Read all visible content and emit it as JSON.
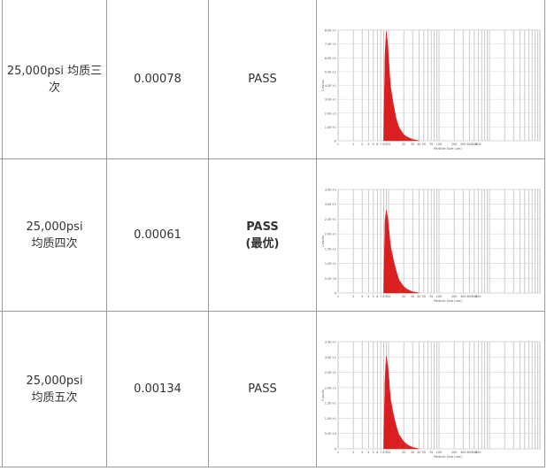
{
  "table": {
    "rows": [
      {
        "condition_line1": "25,000psi 均质三次",
        "condition_line2": "",
        "value": "0.00078",
        "result": "PASS",
        "result_note": "",
        "result_bold": false
      },
      {
        "condition_line1": "25,000psi",
        "condition_line2": "均质四次",
        "value": "0.00061",
        "result": "PASS",
        "result_note": "(最优)",
        "result_bold": true
      },
      {
        "condition_line1": "25,000psi",
        "condition_line2": "均质五次",
        "value": "0.00134",
        "result": "PASS",
        "result_note": "",
        "result_bold": false
      }
    ]
  },
  "chart_data": [
    {
      "type": "area",
      "title": "",
      "xlabel": "Particle Size (um)",
      "ylabel": "Counts",
      "x_scale": "log",
      "xlim": [
        0.1,
        1000
      ],
      "x_ticks": [
        "1",
        "2",
        "3",
        "4",
        "5",
        "6",
        "7",
        "8",
        "9",
        "10",
        "20",
        "30",
        "40",
        "50",
        "70",
        "100",
        "200",
        "300",
        "400",
        "500",
        "600"
      ],
      "ylim": [
        0,
        800
      ],
      "y_ticks": [
        "0",
        "1.0E+1",
        "2.0E+1",
        "3.0E+1",
        "4.0E+1",
        "5.0E+1",
        "6.0E+1",
        "7.0E+1",
        "8.0E+1"
      ],
      "x": [
        0.8,
        0.85,
        0.9,
        0.95,
        1.0,
        1.05,
        1.1,
        1.2,
        1.3,
        1.4,
        1.5,
        1.6,
        1.8,
        2.0,
        2.3,
        2.6,
        3.0,
        3.5,
        4.0
      ],
      "y": [
        0,
        620,
        790,
        720,
        600,
        480,
        390,
        300,
        230,
        170,
        130,
        100,
        70,
        45,
        30,
        20,
        10,
        5,
        0
      ],
      "color": "#e52929",
      "grid": true
    },
    {
      "type": "area",
      "title": "",
      "xlabel": "Particle Size (um)",
      "ylabel": "Counts",
      "x_scale": "log",
      "xlim": [
        0.1,
        1000
      ],
      "x_ticks": [
        "1",
        "2",
        "3",
        "4",
        "5",
        "6",
        "7",
        "8",
        "9",
        "10",
        "20",
        "30",
        "40",
        "50",
        "70",
        "100",
        "200",
        "300",
        "400",
        "500",
        "600"
      ],
      "ylim": [
        0,
        800
      ],
      "y_ticks": [
        "0",
        "5.0E+0",
        "1.0E+1",
        "1.5E+1",
        "2.0E+1",
        "2.5E+1",
        "3.0E+1",
        "3.5E+1"
      ],
      "x": [
        0.8,
        0.85,
        0.9,
        0.95,
        1.0,
        1.05,
        1.1,
        1.2,
        1.3,
        1.4,
        1.5,
        1.6,
        1.8,
        2.0,
        2.3,
        2.6,
        3.0,
        3.5,
        4.0
      ],
      "y": [
        0,
        560,
        640,
        600,
        520,
        430,
        360,
        290,
        230,
        180,
        140,
        105,
        75,
        50,
        32,
        20,
        10,
        5,
        0
      ],
      "color": "#e52929",
      "grid": true
    },
    {
      "type": "area",
      "title": "",
      "xlabel": "Particle Size (um)",
      "ylabel": "Counts",
      "x_scale": "log",
      "xlim": [
        0.1,
        1000
      ],
      "x_ticks": [
        "1",
        "2",
        "3",
        "4",
        "5",
        "6",
        "7",
        "8",
        "9",
        "10",
        "20",
        "30",
        "40",
        "50",
        "70",
        "100",
        "200",
        "300",
        "400",
        "500",
        "600"
      ],
      "ylim": [
        0,
        800
      ],
      "y_ticks": [
        "0",
        "5.0E+0",
        "1.0E+1",
        "1.5E+1",
        "2.0E+1",
        "2.5E+1",
        "3.0E+1",
        "3.5E+1"
      ],
      "x": [
        0.8,
        0.85,
        0.9,
        0.95,
        1.0,
        1.05,
        1.1,
        1.2,
        1.3,
        1.4,
        1.5,
        1.6,
        1.8,
        2.0,
        2.3,
        2.6,
        3.0,
        3.5,
        4.0
      ],
      "y": [
        0,
        520,
        690,
        640,
        560,
        450,
        370,
        290,
        230,
        180,
        140,
        110,
        80,
        55,
        35,
        22,
        12,
        5,
        0
      ],
      "color": "#e52929",
      "grid": true
    }
  ]
}
